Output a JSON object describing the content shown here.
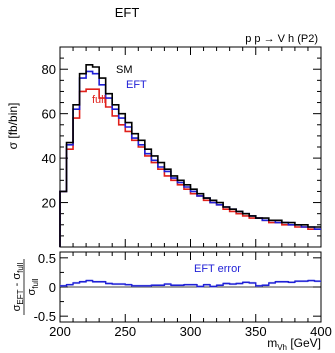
{
  "chart_data": [
    {
      "type": "line",
      "title": "EFT",
      "process_label": "p p → V h (P2)",
      "ylabel": "σ [fb/bin]",
      "xlim": [
        200,
        400
      ],
      "ylim": [
        0,
        90
      ],
      "yticks": [
        20,
        40,
        60,
        80
      ],
      "x_edges": [
        200,
        205,
        210,
        215,
        220,
        225,
        230,
        235,
        240,
        245,
        250,
        255,
        260,
        265,
        270,
        275,
        280,
        285,
        290,
        295,
        300,
        305,
        310,
        315,
        320,
        325,
        330,
        335,
        340,
        345,
        350,
        355,
        360,
        365,
        370,
        375,
        380,
        385,
        390,
        395,
        400
      ],
      "series": [
        {
          "name": "SM",
          "color": "#000000",
          "values": [
            25,
            47,
            64,
            78,
            82,
            81,
            76,
            69,
            64,
            60,
            56,
            51,
            48,
            44,
            41,
            38,
            35,
            32,
            30,
            28,
            26,
            24,
            22,
            21,
            20,
            18,
            17,
            16,
            15,
            14,
            13,
            13,
            12,
            12,
            11,
            11,
            10,
            10,
            9,
            9
          ]
        },
        {
          "name": "EFT",
          "color": "#1f1fd6",
          "values": [
            25,
            46,
            62,
            76,
            79,
            78,
            73,
            67,
            62,
            58,
            54,
            49,
            46,
            42,
            39,
            36,
            34,
            31,
            29,
            27,
            25,
            23,
            22,
            20,
            19,
            18,
            17,
            16,
            15,
            14,
            13,
            12,
            12,
            11,
            11,
            10,
            10,
            9,
            9,
            8
          ]
        },
        {
          "name": "full",
          "color": "#e0201b",
          "values": [
            25,
            44,
            58,
            70,
            71,
            71,
            67,
            63,
            59,
            55,
            52,
            48,
            45,
            41,
            38,
            35,
            32,
            30,
            28,
            26,
            24,
            23,
            21,
            20,
            19,
            17,
            16,
            15,
            14,
            13,
            13,
            12,
            11,
            11,
            10,
            10,
            9,
            9,
            8,
            8
          ]
        }
      ]
    },
    {
      "type": "line",
      "ylabel": "σEFT - σfull / σfull",
      "xlabel": "m_Vh [GeV]",
      "xlim": [
        200,
        400
      ],
      "ylim": [
        -0.6,
        0.6
      ],
      "yticks": [
        -0.5,
        0,
        0.5
      ],
      "xticks": [
        200,
        250,
        300,
        350,
        400
      ],
      "x_edges": [
        200,
        205,
        210,
        215,
        220,
        225,
        230,
        235,
        240,
        245,
        250,
        255,
        260,
        265,
        270,
        275,
        280,
        285,
        290,
        295,
        300,
        305,
        310,
        315,
        320,
        325,
        330,
        335,
        340,
        345,
        350,
        355,
        360,
        365,
        370,
        375,
        380,
        385,
        390,
        395,
        400
      ],
      "series": [
        {
          "name": "EFT error",
          "color": "#1f1fd6",
          "values": [
            0.02,
            0.04,
            0.07,
            0.09,
            0.11,
            0.09,
            0.09,
            0.06,
            0.05,
            0.05,
            0.04,
            0.02,
            0.02,
            0.02,
            0.03,
            0.03,
            0.05,
            0.03,
            0.03,
            0.04,
            0.04,
            0.01,
            0.04,
            0.01,
            0.03,
            0.06,
            0.05,
            0.06,
            0.08,
            0.07,
            0.02,
            0.03,
            0.07,
            0.09,
            0.09,
            0.08,
            0.1,
            0.1,
            0.11,
            0.1
          ]
        }
      ]
    }
  ]
}
